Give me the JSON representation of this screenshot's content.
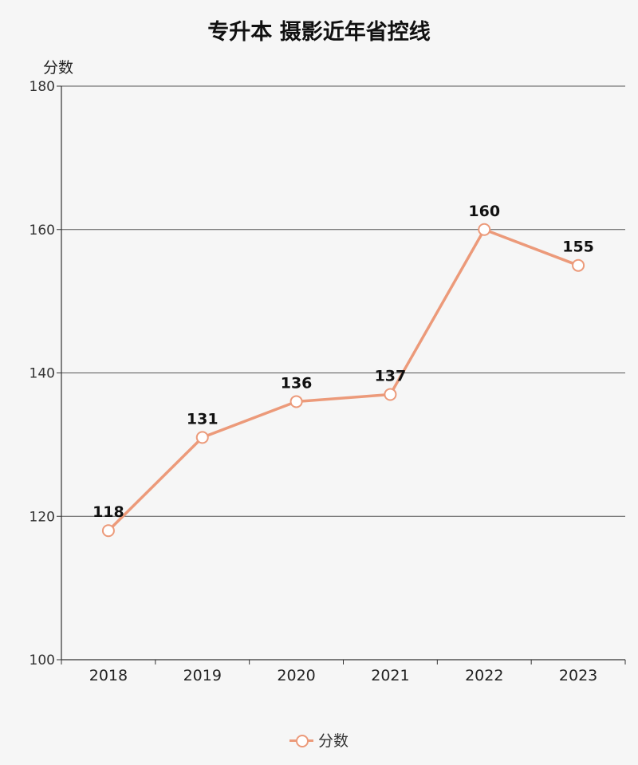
{
  "chart_data": {
    "type": "line",
    "title": "专升本 摄影近年省控线",
    "xlabel": "",
    "ylabel": "分数",
    "categories": [
      "2018",
      "2019",
      "2020",
      "2021",
      "2022",
      "2023"
    ],
    "series": [
      {
        "name": "分数",
        "values": [
          118,
          131,
          136,
          137,
          160,
          155
        ],
        "color": "#ec9a7a"
      }
    ],
    "ylim": [
      100,
      180
    ],
    "yticks": [
      100,
      120,
      140,
      160,
      180
    ],
    "grid": true,
    "legend_position": "bottom-center",
    "data_labels": true
  }
}
